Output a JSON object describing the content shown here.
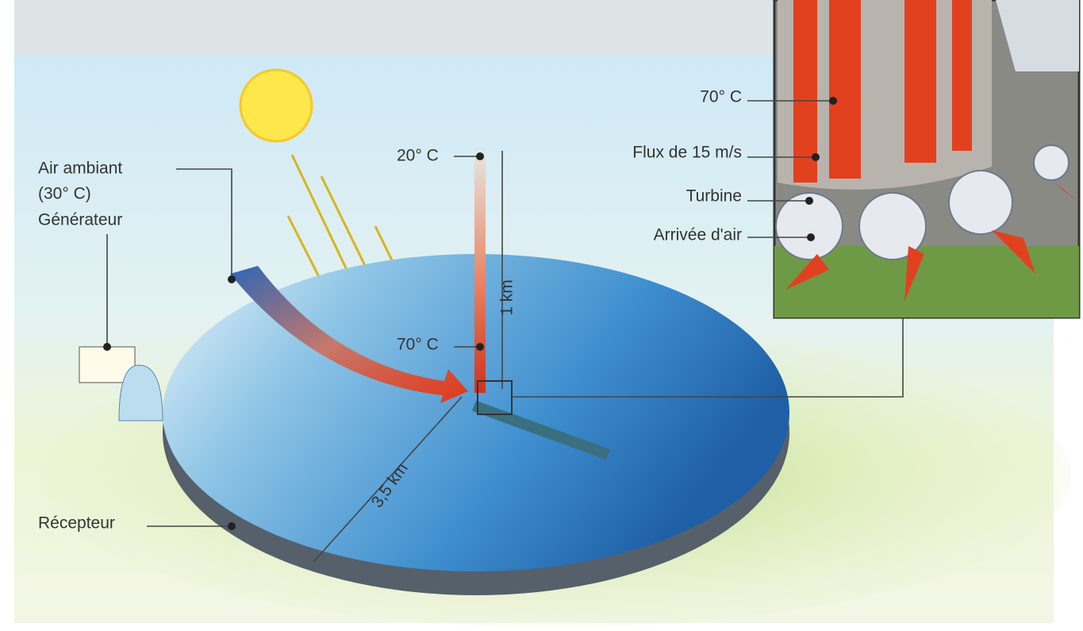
{
  "callouts": [
    "Air ambiant",
    "(30° C)",
    "Générateur",
    "Récepteur"
  ],
  "tower": {
    "top_temp": "20° C",
    "base_temp": "70° C",
    "height": "1 km"
  },
  "collector": {
    "radius": "3,5 km"
  },
  "inset": {
    "labels": [
      "70° C",
      "Flux de 15 m/s",
      "Turbine",
      "Arrivée d'air"
    ]
  }
}
